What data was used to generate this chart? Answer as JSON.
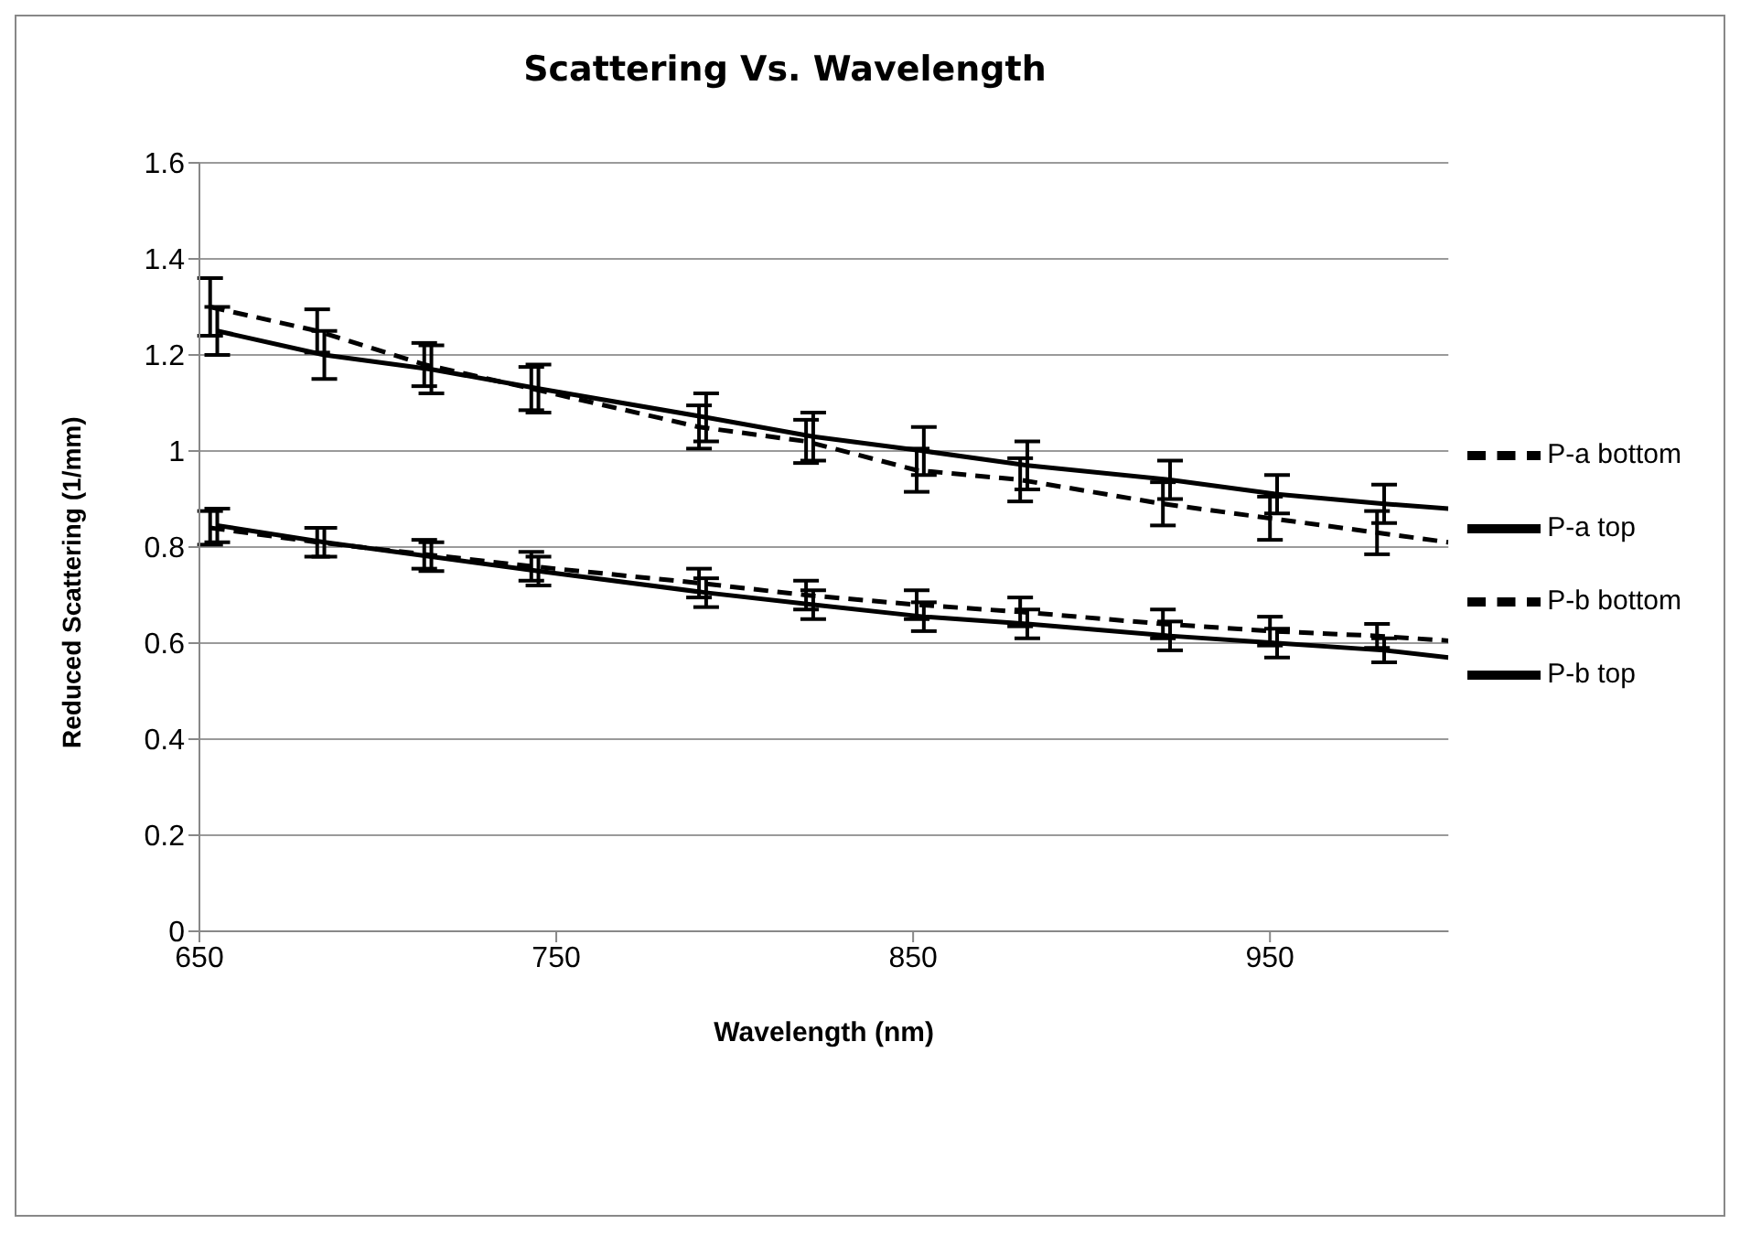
{
  "chart_data": {
    "type": "line",
    "title": "Scattering Vs. Wavelength",
    "xlabel": "Wavelength (nm)",
    "ylabel": "Reduced Scattering (1/mm)",
    "series": [
      {
        "name": "P-a  bottom",
        "color": "#000000",
        "x": [
          653,
          683,
          713,
          743,
          790,
          820,
          851,
          880,
          920,
          950,
          980,
          1000
        ],
        "line_style": "dashed",
        "values": [
          1.3,
          1.25,
          1.18,
          1.13,
          1.05,
          1.02,
          0.96,
          0.94,
          0.89,
          0.86,
          0.83,
          0.81
        ],
        "errors": [
          0.06,
          0.045,
          0.045,
          0.045,
          0.045,
          0.045,
          0.045,
          0.045,
          0.045,
          0.045,
          0.045,
          null
        ]
      },
      {
        "name": "P-a top",
        "color": "#000000",
        "x": [
          655,
          685,
          715,
          745,
          792,
          822,
          853,
          882,
          922,
          952,
          982,
          1000
        ],
        "line_style": "solid",
        "values": [
          1.25,
          1.2,
          1.17,
          1.13,
          1.07,
          1.03,
          1.0,
          0.97,
          0.94,
          0.91,
          0.89,
          0.88
        ],
        "errors": [
          0.05,
          0.05,
          0.05,
          0.05,
          0.05,
          0.05,
          0.05,
          0.05,
          0.04,
          0.04,
          0.04,
          null
        ]
      },
      {
        "name": "P-b bottom",
        "color": "#000000",
        "x": [
          653,
          683,
          713,
          743,
          790,
          820,
          851,
          880,
          920,
          950,
          980,
          1000
        ],
        "line_style": "dashed",
        "values": [
          0.84,
          0.81,
          0.785,
          0.76,
          0.725,
          0.7,
          0.68,
          0.665,
          0.64,
          0.625,
          0.615,
          0.605
        ],
        "errors": [
          0.035,
          0.03,
          0.03,
          0.03,
          0.03,
          0.03,
          0.03,
          0.03,
          0.03,
          0.03,
          0.025,
          null
        ]
      },
      {
        "name": "P-b top",
        "color": "#000000",
        "x": [
          655,
          685,
          715,
          745,
          792,
          822,
          853,
          882,
          922,
          952,
          982,
          1000
        ],
        "line_style": "solid",
        "values": [
          0.845,
          0.81,
          0.78,
          0.75,
          0.705,
          0.68,
          0.655,
          0.64,
          0.615,
          0.6,
          0.585,
          0.57
        ],
        "errors": [
          0.035,
          0.03,
          0.03,
          0.03,
          0.03,
          0.03,
          0.03,
          0.03,
          0.03,
          0.03,
          0.025,
          null
        ]
      }
    ],
    "xlim": [
      650,
      1000
    ],
    "xticks": [
      650,
      750,
      850,
      950
    ],
    "ylim": [
      0,
      1.6
    ],
    "yticks": [
      0,
      0.2,
      0.4,
      0.6,
      0.8,
      1,
      1.2,
      1.4,
      1.6
    ],
    "grid": "y",
    "legend": "right",
    "marker": "none"
  }
}
